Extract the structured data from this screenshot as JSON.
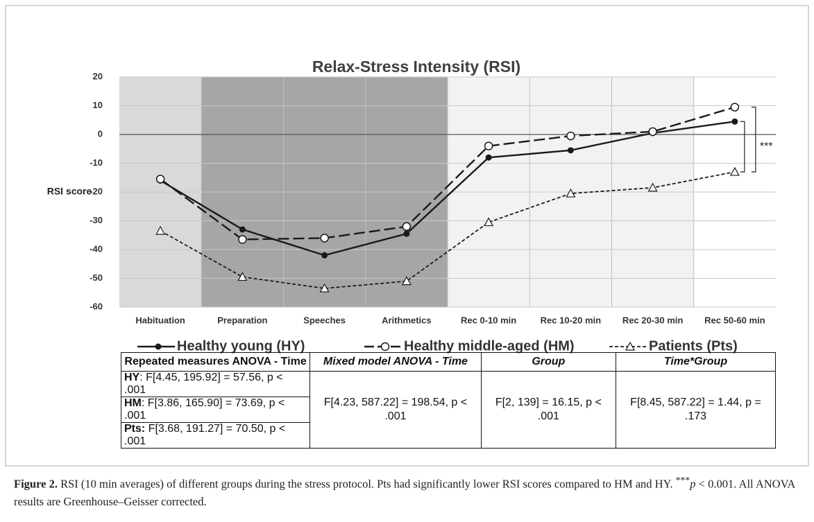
{
  "chart_data": {
    "type": "line",
    "title": "Relax-Stress Intensity (RSI)",
    "y_label": "RSI score",
    "categories": [
      "Habituation",
      "Preparation",
      "Speeches",
      "Arithmetics",
      "Rec 0-10 min",
      "Rec 10-20 min",
      "Rec 20-30 min",
      "Rec 50-60 min"
    ],
    "band_colors": [
      "#d9d9d9",
      "#a6a6a6",
      "#a6a6a6",
      "#a6a6a6",
      "#f2f2f2",
      "#f2f2f2",
      "#f2f2f2",
      "#ffffff"
    ],
    "series": [
      {
        "name": "Healthy young (HY)",
        "color": "#1a1a1a",
        "style": "solid",
        "marker": "dot",
        "values": [
          -16,
          -33,
          -42,
          -34.5,
          -8,
          -5.5,
          0.5,
          4.5
        ]
      },
      {
        "name": "Healthy middle-aged (HM)",
        "color": "#1a1a1a",
        "style": "dashed",
        "marker": "circle",
        "values": [
          -15.5,
          -36.5,
          -36,
          -32,
          -4,
          -0.5,
          1,
          9.5
        ]
      },
      {
        "name": "Patients (Pts)",
        "color": "#1a1a1a",
        "style": "dotted",
        "marker": "triangle",
        "values": [
          -33.5,
          -49.5,
          -53.5,
          -51,
          -30.5,
          -20.5,
          -18.5,
          -13
        ]
      }
    ],
    "annotation": "***",
    "ylim": [
      -60,
      20
    ],
    "yticks": [
      -60,
      -50,
      -40,
      -30,
      -20,
      -10,
      0,
      10,
      20
    ],
    "grid": true,
    "legend": "bottom"
  },
  "table": {
    "header": [
      "Repeated measures ANOVA - Time",
      "Mixed model ANOVA - Time",
      "Group",
      "Time*Group"
    ],
    "rows": [
      {
        "label": "HY",
        "text": ": F[4.45, 195.92] = 57.56, p < .001"
      },
      {
        "label": "HM",
        "text": ": F[3.86, 165.90] =  73.69, p < .001"
      },
      {
        "label": "Pts:",
        "text": " F[3.68, 191.27] = 70.50, p < .001"
      }
    ],
    "merged": [
      "F[4.23, 587.22] = 198.54, p < .001",
      "F[2, 139] = 16.15, p < .001",
      "F[8.45, 587.22] = 1.44, p = .173"
    ]
  },
  "caption": {
    "label": "Figure 2.",
    "text": " RSI (10 min averages) of different groups during the stress protocol. Pts had significantly lower RSI scores compared to HM and HY. ",
    "sup": "***",
    "p": "p",
    "rest": " < 0.001. All ANOVA results are Greenhouse–Geisser corrected."
  }
}
